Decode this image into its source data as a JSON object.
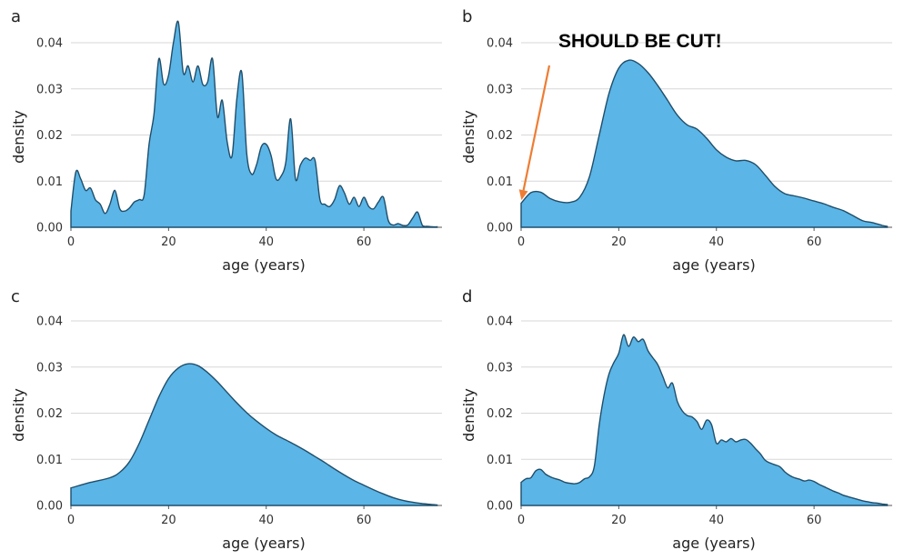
{
  "annotation": {
    "text": "SHOULD BE CUT!",
    "color": "#ee7d33",
    "target": {
      "x": 0,
      "y": 0.0055
    }
  },
  "style": {
    "fill": "#5bb5e6",
    "stroke": "#1f4e6b",
    "grid": "#d7d7d7"
  },
  "chart_data": [
    {
      "panel": "a",
      "type": "area",
      "xlabel": "age (years)",
      "ylabel": "density",
      "xlim": [
        0,
        76
      ],
      "ylim": [
        0,
        0.04
      ],
      "xticks": [
        "0",
        "20",
        "40",
        "60"
      ],
      "yticks": [
        "0.00",
        "0.01",
        "0.02",
        "0.03",
        "0.04"
      ],
      "grid": "horizontal",
      "x": [
        0,
        1,
        2,
        3,
        4,
        5,
        6,
        7,
        8,
        9,
        10,
        11,
        12,
        13,
        14,
        15,
        16,
        17,
        18,
        19,
        20,
        21,
        22,
        23,
        24,
        25,
        26,
        27,
        28,
        29,
        30,
        31,
        32,
        33,
        34,
        35,
        36,
        37,
        38,
        39,
        40,
        41,
        42,
        43,
        44,
        45,
        46,
        47,
        48,
        49,
        50,
        51,
        52,
        53,
        54,
        55,
        56,
        57,
        58,
        59,
        60,
        61,
        62,
        63,
        64,
        65,
        66,
        67,
        68,
        69,
        70,
        71,
        72,
        73,
        74,
        75
      ],
      "y": [
        0.0035,
        0.012,
        0.0105,
        0.008,
        0.0085,
        0.006,
        0.005,
        0.003,
        0.005,
        0.008,
        0.004,
        0.0035,
        0.0042,
        0.0055,
        0.006,
        0.007,
        0.018,
        0.0245,
        0.0365,
        0.031,
        0.033,
        0.04,
        0.0445,
        0.0335,
        0.035,
        0.0315,
        0.035,
        0.031,
        0.0315,
        0.0365,
        0.024,
        0.0275,
        0.0185,
        0.0155,
        0.028,
        0.0335,
        0.016,
        0.0115,
        0.0135,
        0.0175,
        0.018,
        0.0155,
        0.0105,
        0.011,
        0.014,
        0.0235,
        0.0105,
        0.0135,
        0.015,
        0.0145,
        0.0145,
        0.006,
        0.005,
        0.0045,
        0.006,
        0.009,
        0.0075,
        0.005,
        0.0065,
        0.0045,
        0.0065,
        0.0045,
        0.004,
        0.0055,
        0.0065,
        0.0015,
        0.0005,
        0.0008,
        0.0004,
        0.0005,
        0.002,
        0.0033,
        0.0004,
        0.0002,
        0.0001,
        0.0001
      ]
    },
    {
      "panel": "b",
      "type": "area",
      "xlabel": "age (years)",
      "ylabel": "density",
      "xlim": [
        0,
        76
      ],
      "ylim": [
        0,
        0.04
      ],
      "xticks": [
        "0",
        "20",
        "40",
        "60"
      ],
      "yticks": [
        "0.00",
        "0.01",
        "0.02",
        "0.03",
        "0.04"
      ],
      "grid": "horizontal",
      "x": [
        0,
        2,
        4,
        6,
        8,
        10,
        12,
        14,
        16,
        18,
        20,
        22,
        24,
        26,
        28,
        30,
        32,
        34,
        36,
        38,
        40,
        42,
        44,
        46,
        48,
        50,
        52,
        54,
        56,
        58,
        60,
        62,
        64,
        66,
        68,
        70,
        72,
        74,
        75
      ],
      "y": [
        0.0052,
        0.0075,
        0.0076,
        0.0062,
        0.0055,
        0.0054,
        0.0065,
        0.011,
        0.02,
        0.029,
        0.0345,
        0.0362,
        0.0355,
        0.0335,
        0.0307,
        0.0275,
        0.0243,
        0.0222,
        0.0213,
        0.0193,
        0.0168,
        0.0152,
        0.0144,
        0.0145,
        0.0136,
        0.0113,
        0.0088,
        0.0073,
        0.0068,
        0.0063,
        0.0057,
        0.0051,
        0.0043,
        0.0036,
        0.0025,
        0.0014,
        0.001,
        0.0004,
        0.0002
      ]
    },
    {
      "panel": "c",
      "type": "area",
      "xlabel": "age (years)",
      "ylabel": "density",
      "xlim": [
        0,
        76
      ],
      "ylim": [
        0,
        0.04
      ],
      "xticks": [
        "0",
        "20",
        "40",
        "60"
      ],
      "yticks": [
        "0.00",
        "0.01",
        "0.02",
        "0.03",
        "0.04"
      ],
      "grid": "horizontal",
      "x": [
        0,
        4,
        8,
        10,
        12,
        14,
        16,
        18,
        20,
        22,
        24,
        26,
        28,
        30,
        32,
        34,
        36,
        38,
        40,
        42,
        44,
        46,
        48,
        50,
        52,
        54,
        56,
        58,
        60,
        62,
        64,
        66,
        68,
        70,
        72,
        74,
        75
      ],
      "y": [
        0.0038,
        0.005,
        0.006,
        0.0072,
        0.0095,
        0.0135,
        0.0185,
        0.0235,
        0.0275,
        0.0298,
        0.0307,
        0.0303,
        0.0288,
        0.0268,
        0.0245,
        0.0222,
        0.0201,
        0.0183,
        0.0167,
        0.0153,
        0.0142,
        0.0131,
        0.0119,
        0.0106,
        0.0093,
        0.0079,
        0.0066,
        0.0054,
        0.0044,
        0.0034,
        0.0025,
        0.0017,
        0.0011,
        0.0007,
        0.0004,
        0.0002,
        0.0001
      ]
    },
    {
      "panel": "d",
      "type": "area",
      "xlabel": "age (years)",
      "ylabel": "density",
      "xlim": [
        0,
        76
      ],
      "ylim": [
        0,
        0.04
      ],
      "xticks": [
        "0",
        "20",
        "40",
        "60"
      ],
      "yticks": [
        "0.00",
        "0.01",
        "0.02",
        "0.03",
        "0.04"
      ],
      "grid": "horizontal",
      "x": [
        0,
        1,
        2,
        3,
        4,
        5,
        6,
        7,
        8,
        9,
        10,
        11,
        12,
        13,
        14,
        15,
        16,
        17,
        18,
        19,
        20,
        21,
        22,
        23,
        24,
        25,
        26,
        27,
        28,
        29,
        30,
        31,
        32,
        33,
        34,
        35,
        36,
        37,
        38,
        39,
        40,
        41,
        42,
        43,
        44,
        45,
        46,
        47,
        48,
        49,
        50,
        51,
        52,
        53,
        54,
        55,
        56,
        57,
        58,
        59,
        60,
        61,
        62,
        63,
        64,
        65,
        66,
        67,
        68,
        69,
        70,
        71,
        72,
        73,
        74,
        75
      ],
      "y": [
        0.005,
        0.0058,
        0.006,
        0.0075,
        0.0078,
        0.0068,
        0.0062,
        0.0058,
        0.0055,
        0.005,
        0.0048,
        0.0047,
        0.005,
        0.0058,
        0.0062,
        0.0085,
        0.0175,
        0.024,
        0.0285,
        0.031,
        0.033,
        0.037,
        0.0345,
        0.0365,
        0.0355,
        0.036,
        0.0335,
        0.032,
        0.0305,
        0.028,
        0.0255,
        0.0265,
        0.0225,
        0.0205,
        0.0195,
        0.0192,
        0.0182,
        0.0165,
        0.0185,
        0.0175,
        0.0135,
        0.0142,
        0.0138,
        0.0145,
        0.0138,
        0.0142,
        0.0143,
        0.0135,
        0.0123,
        0.0112,
        0.0098,
        0.0092,
        0.0088,
        0.0084,
        0.0073,
        0.0065,
        0.006,
        0.0057,
        0.0053,
        0.0055,
        0.0052,
        0.0046,
        0.0041,
        0.0036,
        0.0031,
        0.0027,
        0.0022,
        0.0019,
        0.0016,
        0.0013,
        0.001,
        0.0008,
        0.0006,
        0.0005,
        0.0003,
        0.0002
      ]
    }
  ]
}
